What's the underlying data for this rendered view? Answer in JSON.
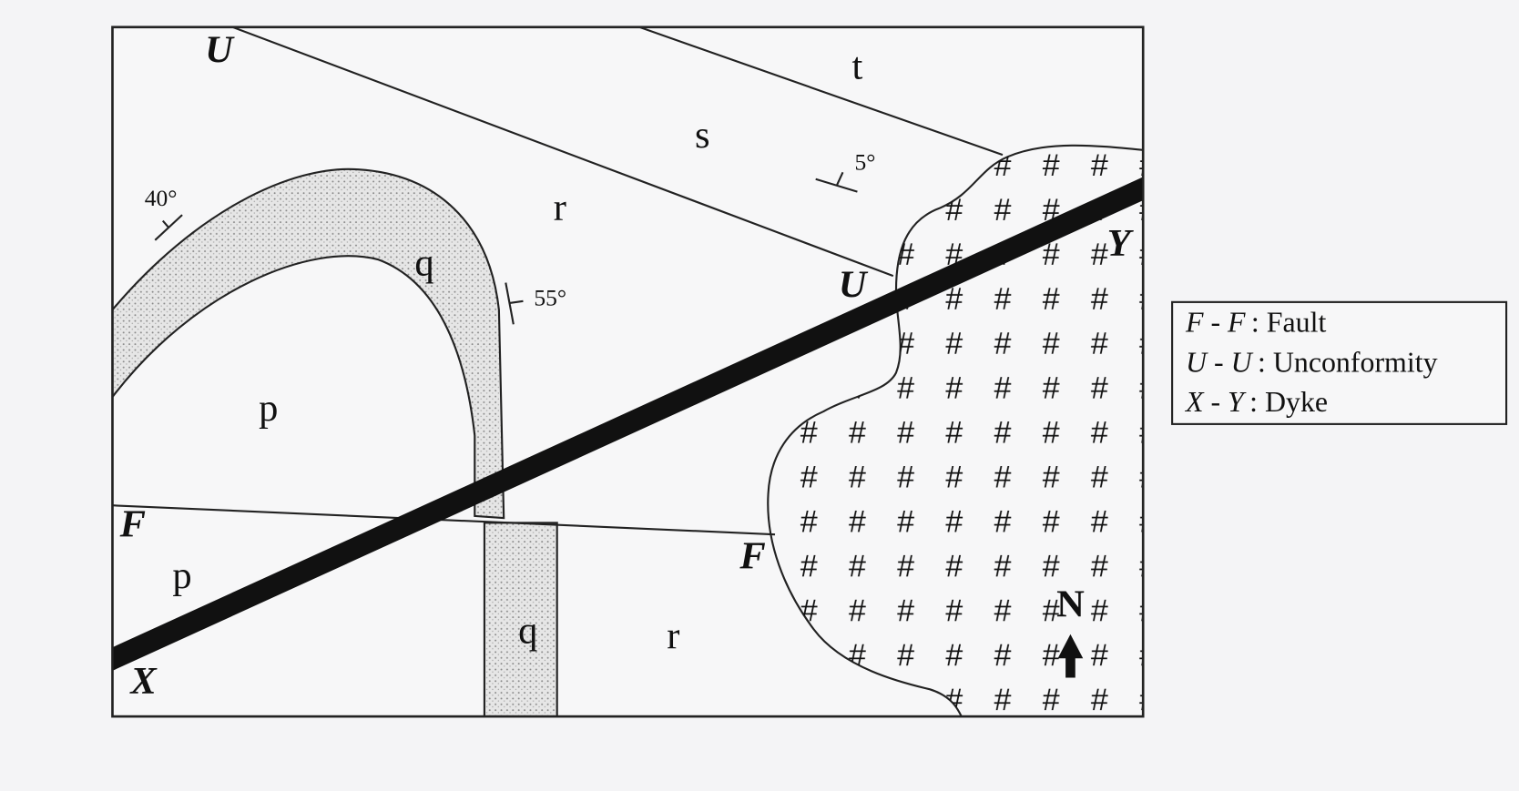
{
  "map": {
    "formations": [
      "t",
      "s",
      "r",
      "q",
      "p",
      "p",
      "q",
      "r"
    ],
    "contacts": [
      "U",
      "U",
      "F",
      "F",
      "X",
      "Y"
    ],
    "dips": [
      "40°",
      "55°",
      "5°"
    ],
    "granite_symbol": "#",
    "north": "N",
    "legend": [
      {
        "key": "F - F",
        "text": ": Fault"
      },
      {
        "key": "U - U",
        "text": ": Unconformity"
      },
      {
        "key": "X - Y",
        "text": ": Dyke"
      }
    ]
  }
}
